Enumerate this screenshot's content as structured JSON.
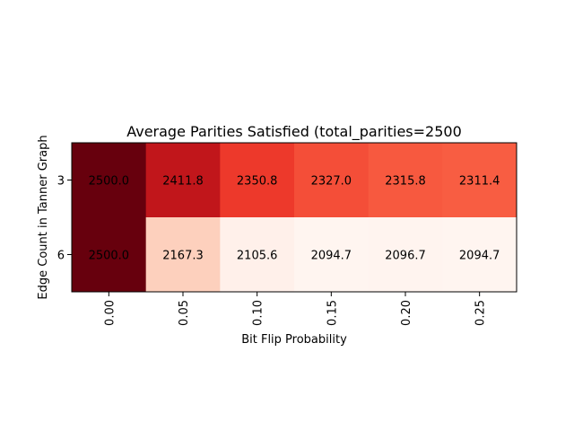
{
  "chart_data": {
    "type": "heatmap",
    "title": "Average Parities Satisfied (total_parities=2500",
    "xlabel": "Bit Flip Probability",
    "ylabel": "Edge Count in Tanner Graph",
    "x_categories": [
      "0.00",
      "0.05",
      "0.10",
      "0.15",
      "0.20",
      "0.25"
    ],
    "y_categories": [
      "3",
      "6"
    ],
    "values": [
      [
        2500.0,
        2411.8,
        2350.8,
        2327.0,
        2315.8,
        2311.4
      ],
      [
        2500.0,
        2167.3,
        2105.6,
        2094.7,
        2096.7,
        2094.7
      ]
    ],
    "value_labels": [
      [
        "2500.0",
        "2411.8",
        "2350.8",
        "2327.0",
        "2315.8",
        "2311.4"
      ],
      [
        "2500.0",
        "2167.3",
        "2105.6",
        "2094.7",
        "2096.7",
        "2094.7"
      ]
    ],
    "colormap": "Reds",
    "grid": false,
    "legend": "none"
  }
}
